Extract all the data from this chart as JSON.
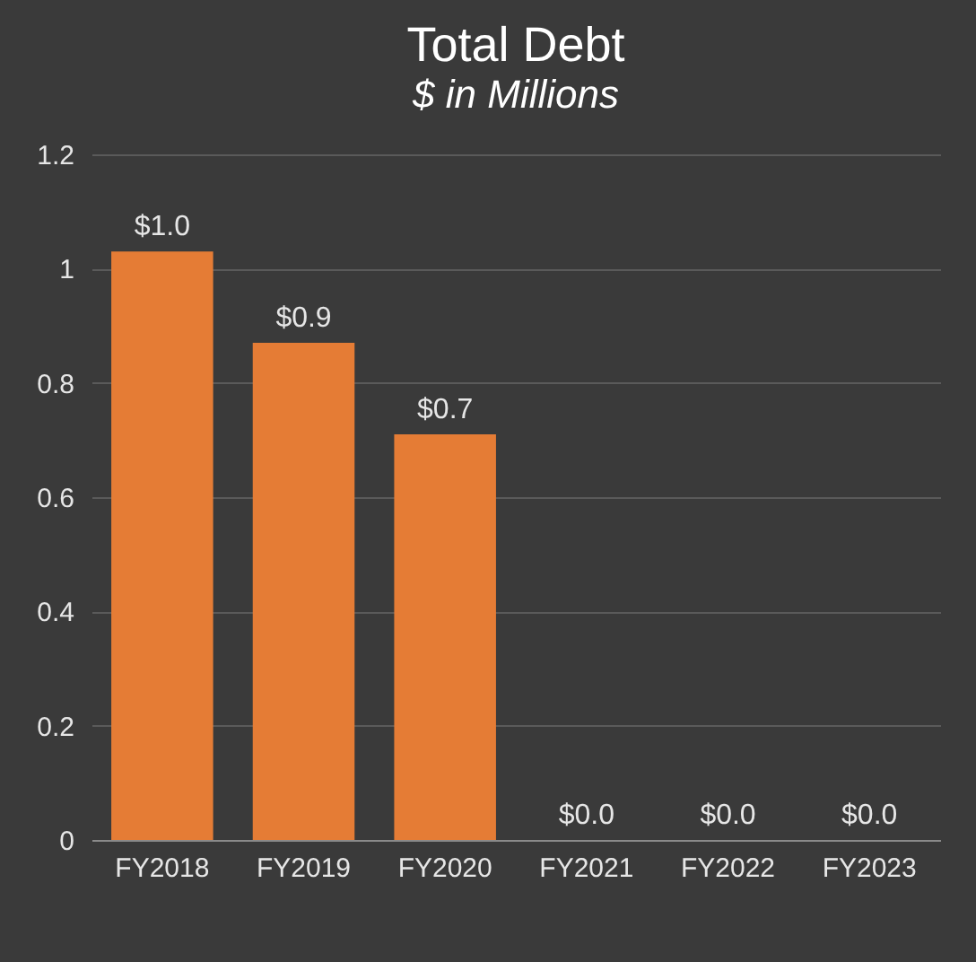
{
  "chart_data": {
    "type": "bar",
    "title": "Total Debt",
    "subtitle": "$ in Millions",
    "categories": [
      "FY2018",
      "FY2019",
      "FY2020",
      "FY2021",
      "FY2022",
      "FY2023"
    ],
    "values": [
      1.03,
      0.87,
      0.71,
      0,
      0,
      0
    ],
    "value_labels": [
      "$1.0",
      "$0.9",
      "$0.7",
      "$0.0",
      "$0.0",
      "$0.0"
    ],
    "color": "#e57c35",
    "ylim": [
      0,
      1.2
    ],
    "yticks": [
      0,
      0.2,
      0.4,
      0.6,
      0.8,
      1,
      1.2
    ],
    "grid": "y"
  }
}
